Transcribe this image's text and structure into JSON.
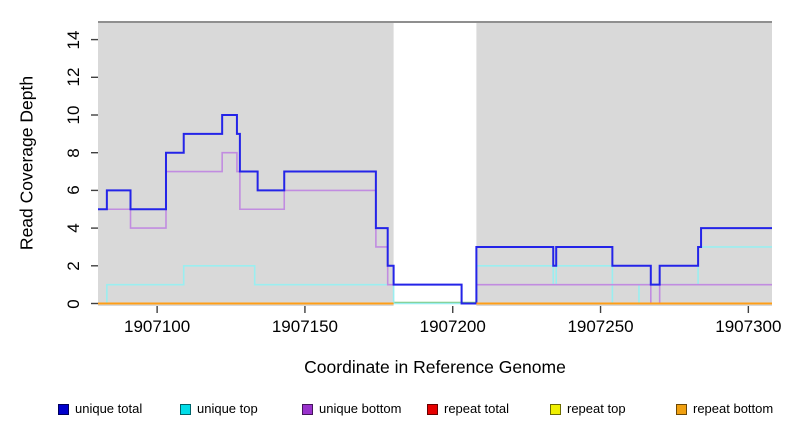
{
  "chart_data": {
    "type": "line",
    "step_mode": "after",
    "title": "",
    "xlabel": "Coordinate in Reference Genome",
    "ylabel": "Read Coverage Depth",
    "xlim": [
      1907080,
      1907308
    ],
    "ylim": [
      0,
      15
    ],
    "grid": false,
    "panel_background": "#d9d9d9",
    "x_ticks": [
      {
        "value": 1907100,
        "label": "1907100"
      },
      {
        "value": 1907150,
        "label": "1907150"
      },
      {
        "value": 1907200,
        "label": "1907200"
      },
      {
        "value": 1907250,
        "label": "1907250"
      },
      {
        "value": 1907300,
        "label": "1907300"
      }
    ],
    "y_ticks": [
      {
        "value": 0,
        "label": "0"
      },
      {
        "value": 2,
        "label": "2"
      },
      {
        "value": 4,
        "label": "4"
      },
      {
        "value": 6,
        "label": "6"
      },
      {
        "value": 8,
        "label": "8"
      },
      {
        "value": 10,
        "label": "10"
      },
      {
        "value": 12,
        "label": "12"
      },
      {
        "value": 14,
        "label": "14"
      }
    ],
    "gap_region": {
      "x_start": 1907180,
      "x_end": 1907208,
      "color": "#ffffff",
      "baseline_color": "#80c880",
      "baseline_y": 0
    },
    "series": [
      {
        "name": "unique total",
        "color": "#2424e8",
        "line_width": 2,
        "points": [
          [
            1907080,
            5
          ],
          [
            1907083,
            6
          ],
          [
            1907091,
            5
          ],
          [
            1907103,
            8
          ],
          [
            1907109,
            9
          ],
          [
            1907122,
            10
          ],
          [
            1907127,
            9
          ],
          [
            1907128,
            7
          ],
          [
            1907134,
            6
          ],
          [
            1907143,
            7
          ],
          [
            1907174,
            4
          ],
          [
            1907178,
            2
          ],
          [
            1907180,
            1
          ],
          [
            1907203,
            0
          ],
          [
            1907208,
            3
          ],
          [
            1907234,
            2
          ],
          [
            1907235,
            3
          ],
          [
            1907254,
            2
          ],
          [
            1907267,
            1
          ],
          [
            1907270,
            2
          ],
          [
            1907283,
            3
          ],
          [
            1907284,
            4
          ],
          [
            1907308,
            4
          ]
        ]
      },
      {
        "name": "unique top",
        "color": "#9aeef0",
        "line_width": 1.6,
        "points": [
          [
            1907080,
            0
          ],
          [
            1907083,
            1
          ],
          [
            1907109,
            2
          ],
          [
            1907133,
            1
          ],
          [
            1907180,
            0
          ],
          [
            1907208,
            2
          ],
          [
            1907234,
            1
          ],
          [
            1907235,
            2
          ],
          [
            1907254,
            0
          ],
          [
            1907263,
            1
          ],
          [
            1907283,
            3
          ],
          [
            1907308,
            3
          ]
        ]
      },
      {
        "name": "unique bottom",
        "color": "#c18ce0",
        "line_width": 1.6,
        "points": [
          [
            1907080,
            5
          ],
          [
            1907091,
            4
          ],
          [
            1907103,
            7
          ],
          [
            1907122,
            8
          ],
          [
            1907127,
            7
          ],
          [
            1907128,
            5
          ],
          [
            1907143,
            6
          ],
          [
            1907174,
            3
          ],
          [
            1907178,
            1
          ],
          [
            1907203,
            0
          ],
          [
            1907208,
            1
          ],
          [
            1907267,
            0
          ],
          [
            1907270,
            1
          ],
          [
            1907308,
            1
          ]
        ]
      },
      {
        "name": "repeat bottom",
        "color": "#ff9e17",
        "line_width": 2,
        "value": 0,
        "segments": [
          [
            1907080,
            1907180
          ],
          [
            1907208,
            1907308
          ]
        ]
      }
    ],
    "legend": {
      "position": "bottom",
      "entries": [
        {
          "label": "unique total",
          "color": "#0000cc"
        },
        {
          "label": "unique top",
          "color": "#00dde8"
        },
        {
          "label": "unique bottom",
          "color": "#9932cc"
        },
        {
          "label": "repeat total",
          "color": "#e60000"
        },
        {
          "label": "repeat top",
          "color": "#f0f000"
        },
        {
          "label": "repeat bottom",
          "color": "#f0a010"
        }
      ]
    }
  }
}
